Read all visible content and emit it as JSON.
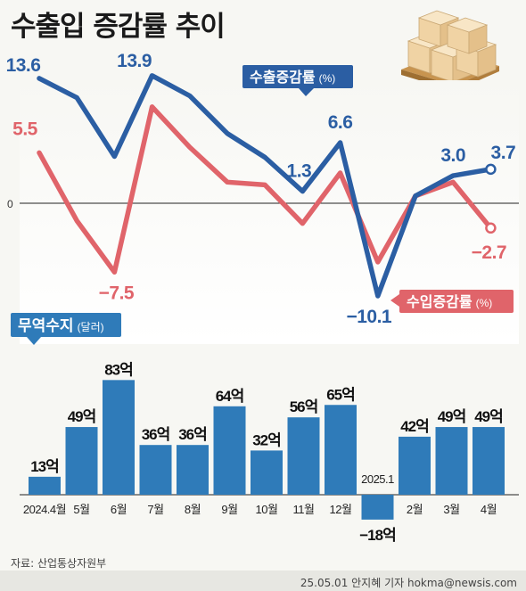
{
  "title": "수출입 증감률 추이",
  "source": "자료: 산업통상자원부",
  "credit": "25.05.01 안지혜 기자 hokma@newsis.com",
  "colors": {
    "export": "#2b5ea3",
    "import": "#e0646a",
    "bar": "#2f7bb9",
    "baseline": "#222222"
  },
  "illustration_icon": "cardboard-boxes-on-pallet-icon",
  "chart_data": [
    {
      "type": "line",
      "x": [
        "2024.4월",
        "5월",
        "6월",
        "7월",
        "8월",
        "9월",
        "10월",
        "11월",
        "12월",
        "2025.1",
        "2월",
        "3월",
        "4월"
      ],
      "zero_label": "0",
      "series": [
        {
          "name": "수출증감률",
          "unit": "(%)",
          "color": "#2b5ea3",
          "values": [
            13.6,
            11.5,
            5.1,
            13.9,
            11.7,
            7.6,
            5.0,
            1.3,
            6.6,
            -10.1,
            0.8,
            3.0,
            3.7
          ],
          "labels": [
            "13.6",
            "",
            "",
            "13.9",
            "",
            "",
            "",
            "1.3",
            "6.6",
            "−10.1",
            "",
            "3.0",
            "3.7"
          ]
        },
        {
          "name": "수입증감률",
          "unit": "(%)",
          "color": "#e0646a",
          "values": [
            5.5,
            -1.9,
            -7.5,
            10.5,
            6.1,
            2.3,
            2.0,
            -2.2,
            3.3,
            -6.4,
            0.8,
            2.3,
            -2.7
          ],
          "labels": [
            "5.5",
            "",
            "−7.5",
            "",
            "",
            "",
            "",
            "",
            "",
            "",
            "",
            "",
            "−2.7"
          ]
        }
      ],
      "ylim": [
        -11,
        15
      ],
      "grid": false,
      "legend": "inline"
    },
    {
      "type": "bar",
      "title": "무역수지",
      "unit": "(달러)",
      "categories": [
        "2024.4월",
        "5월",
        "6월",
        "7월",
        "8월",
        "9월",
        "10월",
        "11월",
        "12월",
        "2025.1",
        "2월",
        "3월",
        "4월"
      ],
      "values": [
        13,
        49,
        83,
        36,
        36,
        64,
        32,
        56,
        65,
        -18,
        42,
        49,
        49
      ],
      "labels": [
        "13억",
        "49억",
        "83억",
        "36억",
        "36억",
        "64억",
        "32억",
        "56억",
        "65억",
        "−18억",
        "42억",
        "49억",
        "49억"
      ],
      "ylim": [
        -20,
        90
      ],
      "grid": false
    }
  ]
}
